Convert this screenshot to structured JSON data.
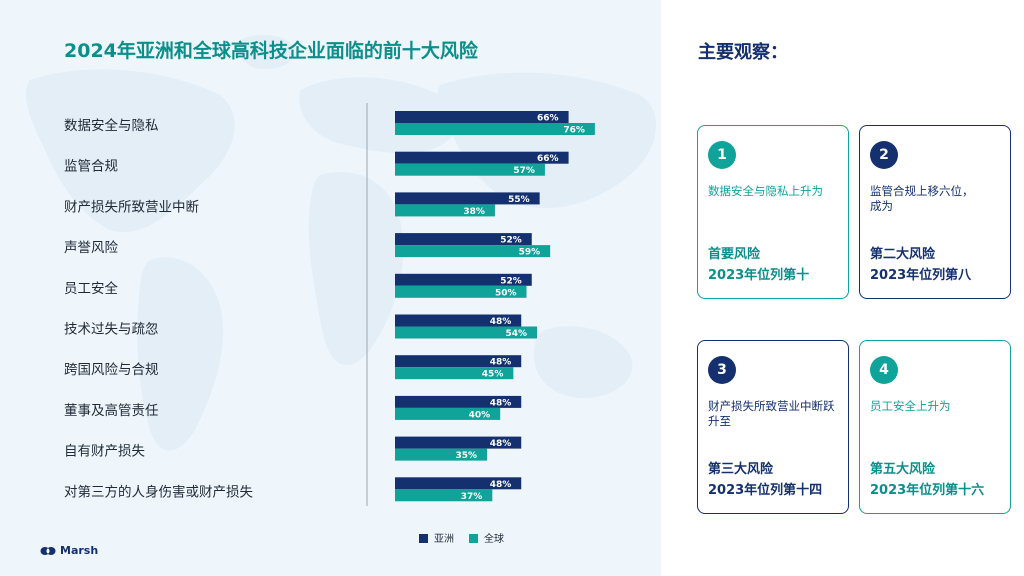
{
  "chart_data": {
    "type": "bar",
    "orientation": "horizontal",
    "title": "2024年亚洲和全球高科技企业面临的前十大风险",
    "categories": [
      "数据安全与隐私",
      "监管合规",
      "财产损失所致营业中断",
      "声誉风险",
      "员工安全",
      "技术过失与疏忽",
      "跨国风险与合规",
      "董事及高管责任",
      "自有财产损失",
      "对第三方的人身伤害或财产损失"
    ],
    "series": [
      {
        "name": "亚洲",
        "values": [
          66,
          66,
          55,
          52,
          52,
          48,
          48,
          48,
          48,
          48
        ],
        "labels": [
          "66%",
          "66%",
          "55%",
          "52%",
          "52%",
          "48%",
          "48%",
          "48%",
          "48%",
          "48%"
        ],
        "color": "#14306e"
      },
      {
        "name": "全球",
        "values": [
          76,
          57,
          38,
          59,
          50,
          54,
          45,
          40,
          35,
          37
        ],
        "labels": [
          "76%",
          "57%",
          "38%",
          "59%",
          "50%",
          "54%",
          "45%",
          "40%",
          "35%",
          "37%"
        ],
        "color": "#0fa39a"
      }
    ],
    "xlim": [
      0,
      100
    ],
    "legend_position": "bottom"
  },
  "sidebar": {
    "title": "主要观察：",
    "cards": [
      {
        "number": "1",
        "description": "数据安全与隐私上升为",
        "highlight_line1": "首要风险",
        "highlight_line2": "2023年位列第十",
        "theme": "teal"
      },
      {
        "number": "2",
        "description": "监管合规上移六位，成为",
        "highlight_line1": "第二大风险",
        "highlight_line2": "2023年位列第八",
        "theme": "navy"
      },
      {
        "number": "3",
        "description": "财产损失所致营业中断跃升至",
        "highlight_line1": "第三大风险",
        "highlight_line2": "2023年位列第十四",
        "theme": "navy"
      },
      {
        "number": "4",
        "description": "员工安全上升为",
        "highlight_line1": "第五大风险",
        "highlight_line2": "2023年位列第十六",
        "theme": "teal"
      }
    ]
  },
  "brand": {
    "name": "Marsh"
  },
  "colors": {
    "asia": "#14306e",
    "global": "#0fa39a",
    "title": "#0a8f8a",
    "panel_bg": "#eef6fb"
  }
}
